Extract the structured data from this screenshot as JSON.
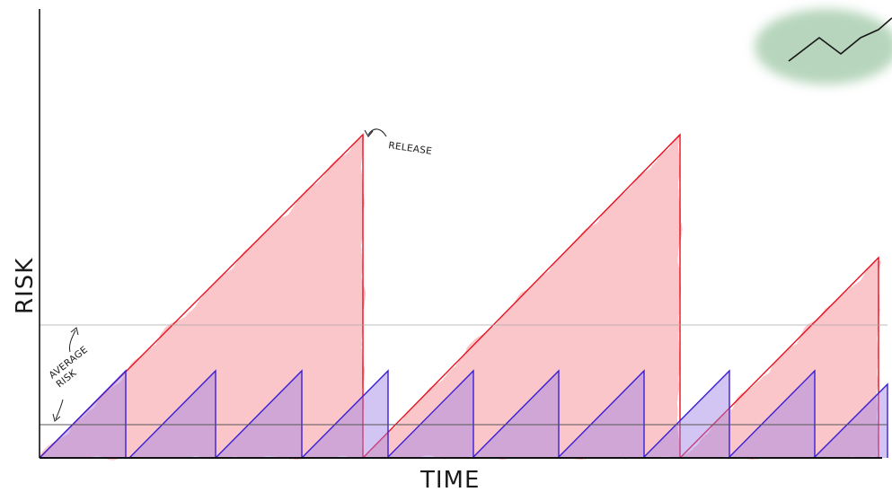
{
  "labels": {
    "y_axis": "RISK",
    "x_axis": "TIME",
    "release": "RELEASE",
    "average_risk_line1": "AVERAGE",
    "average_risk_line2": "RISK"
  },
  "colors": {
    "background": "#ffffff",
    "axis": "#111111",
    "big_cycle_fill": "#f9b3b8",
    "big_cycle_stroke": "#e8101e",
    "small_cycle_fill": "#9b7fe6",
    "small_cycle_stroke": "#3a1fd6",
    "avg_line": "#9a9a9a",
    "thumbnail_wash": "#9fc8a6"
  },
  "icons": {
    "thumbnail": "rising-line-thumbnail-icon"
  }
}
